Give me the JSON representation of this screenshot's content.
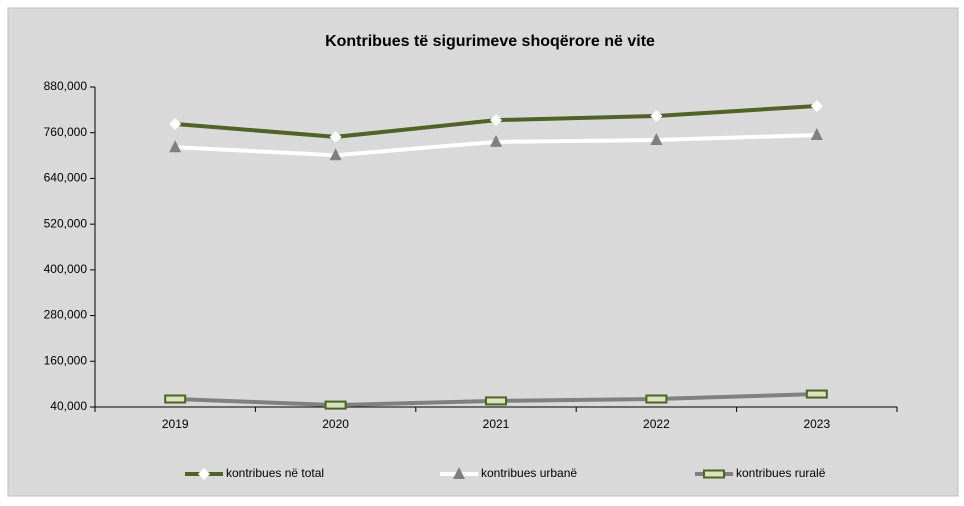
{
  "chart_data": {
    "type": "line",
    "title": "Kontribues të sigurimeve shoqërore në vite",
    "categories": [
      "2019",
      "2020",
      "2021",
      "2022",
      "2023"
    ],
    "series": [
      {
        "name": "kontribues në total",
        "color": "#4f6228",
        "marker": "diamond",
        "marker_color": "#ffffff",
        "values": [
          783000,
          749000,
          793000,
          804000,
          830000
        ]
      },
      {
        "name": "kontribues urbanë",
        "color": "#ffffff",
        "marker": "triangle",
        "marker_color": "#808080",
        "values": [
          722000,
          701000,
          736000,
          741000,
          754000
        ]
      },
      {
        "name": "kontribues ruralë",
        "color": "#808080",
        "marker": "square",
        "marker_color": "#4f6228",
        "values": [
          61000,
          45000,
          56000,
          61000,
          74000
        ]
      }
    ],
    "ylim": [
      40000,
      880000
    ],
    "yticks": [
      {
        "value": 40000,
        "label": "40,000"
      },
      {
        "value": 160000,
        "label": "160,000"
      },
      {
        "value": 280000,
        "label": "280,000"
      },
      {
        "value": 400000,
        "label": "400,000"
      },
      {
        "value": 520000,
        "label": "520,000"
      },
      {
        "value": 640000,
        "label": "640,000"
      },
      {
        "value": 760000,
        "label": "760,000"
      },
      {
        "value": 880000,
        "label": "880,000"
      }
    ],
    "grid": false,
    "legend": "bottom"
  }
}
